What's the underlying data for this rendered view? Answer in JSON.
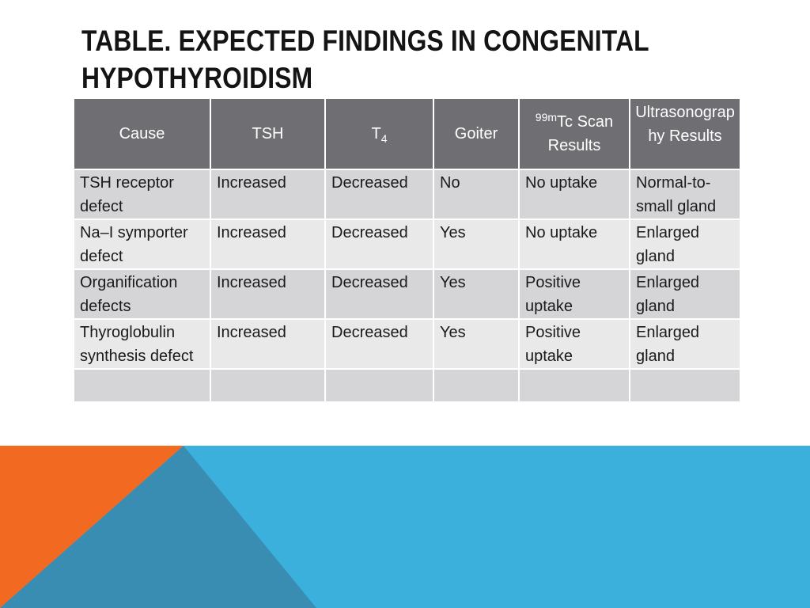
{
  "slide": {
    "title": "Table. Expected Findings in Congenital Hypothyroidism"
  },
  "table": {
    "headers": {
      "cause": "Cause",
      "tsh": "TSH",
      "t4_base": "T",
      "t4_sub": "4",
      "goiter": "Goiter",
      "scan_prefix": "99m",
      "scan_label": "Tc Scan Results",
      "ultrasound": "Ultrasonography Results"
    },
    "rows": [
      {
        "cause": "TSH receptor defect",
        "tsh": "Increased",
        "t4": "Decreased",
        "goiter": "No",
        "scan": "No uptake",
        "ultrasound": "Normal-to-small gland"
      },
      {
        "cause": "Na–I symporter defect",
        "tsh": "Increased",
        "t4": "Decreased",
        "goiter": "Yes",
        "scan": "No uptake",
        "ultrasound": "Enlarged gland"
      },
      {
        "cause": "Organification defects",
        "tsh": "Increased",
        "t4": "Decreased",
        "goiter": "Yes",
        "scan": "Positive uptake",
        "ultrasound": "Enlarged gland"
      },
      {
        "cause": "Thyroglobulin synthesis defect",
        "tsh": "Increased",
        "t4": "Decreased",
        "goiter": "Yes",
        "scan": "Positive uptake",
        "ultrasound": "Enlarged gland"
      }
    ]
  },
  "colors": {
    "header_bg": "#6f6f73",
    "row_dark": "#d5d5d7",
    "row_light": "#e9e9ea",
    "accent_orange": "#f26a21",
    "accent_blue": "#3cb0dd",
    "accent_steel": "#3a8db2"
  }
}
